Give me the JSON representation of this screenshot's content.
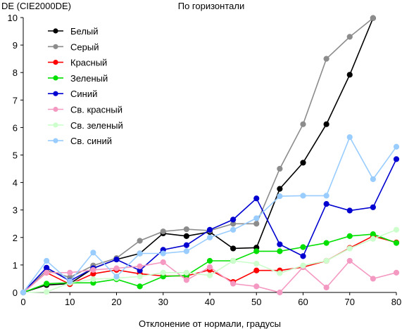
{
  "chart_data": {
    "type": "line",
    "title": "По горизонтали",
    "ylabel": "DE (CIE2000DE)",
    "xlabel": "Отклонение от нормали, градусы",
    "xlim": [
      0,
      80
    ],
    "ylim": [
      0,
      10
    ],
    "xticks": [
      0,
      10,
      20,
      30,
      40,
      50,
      60,
      70,
      80
    ],
    "yticks": [
      0,
      1,
      2,
      3,
      4,
      5,
      6,
      7,
      8,
      9,
      10
    ],
    "grid": false,
    "legend_position": "top-left",
    "series": [
      {
        "name": "Белый",
        "color": "#000000",
        "x": [
          0,
          5,
          10,
          15,
          20,
          25,
          30,
          35,
          40,
          45,
          50,
          55,
          60,
          65,
          70,
          75
        ],
        "y": [
          0.0,
          0.27,
          0.32,
          0.88,
          1.2,
          1.42,
          2.15,
          2.05,
          2.2,
          1.6,
          1.63,
          3.77,
          4.72,
          6.12,
          7.92,
          9.98
        ]
      },
      {
        "name": "Серый",
        "color": "#8c8c8c",
        "x": [
          0,
          5,
          10,
          15,
          20,
          25,
          30,
          35,
          40,
          45,
          50,
          55,
          60,
          65,
          70,
          75
        ],
        "y": [
          0.0,
          0.8,
          0.55,
          0.98,
          1.25,
          1.88,
          2.22,
          2.3,
          2.25,
          2.5,
          2.5,
          4.5,
          6.12,
          8.5,
          9.3,
          9.98
        ]
      },
      {
        "name": "Красный",
        "color": "#ff0000",
        "x": [
          0,
          5,
          10,
          15,
          20,
          25,
          30,
          35,
          40,
          45,
          50,
          55,
          60,
          65,
          70,
          75,
          80
        ],
        "y": [
          0.0,
          0.72,
          0.3,
          0.68,
          0.82,
          0.68,
          0.6,
          0.6,
          0.82,
          0.38,
          0.8,
          0.8,
          0.92,
          1.15,
          1.62,
          2.05,
          1.82
        ]
      },
      {
        "name": "Зеленый",
        "color": "#00e000",
        "x": [
          0,
          5,
          10,
          15,
          20,
          25,
          30,
          35,
          40,
          45,
          50,
          55,
          60,
          65,
          70,
          75,
          80
        ],
        "y": [
          0.0,
          0.32,
          0.35,
          0.35,
          0.48,
          0.22,
          0.58,
          0.62,
          1.15,
          1.15,
          1.5,
          1.5,
          1.65,
          1.8,
          2.05,
          2.12,
          1.8
        ]
      },
      {
        "name": "Синий",
        "color": "#0000d0",
        "x": [
          0,
          5,
          10,
          15,
          20,
          25,
          30,
          35,
          40,
          45,
          50,
          55,
          60,
          65,
          70,
          75,
          80
        ],
        "y": [
          0.0,
          0.9,
          0.42,
          0.88,
          1.2,
          0.8,
          1.55,
          1.72,
          2.28,
          2.65,
          3.42,
          1.75,
          1.32,
          3.22,
          2.98,
          3.1,
          4.85
        ]
      },
      {
        "name": "Св. красный",
        "color": "#f49ac2",
        "x": [
          0,
          5,
          10,
          15,
          20,
          25,
          30,
          35,
          40,
          45,
          50,
          55,
          60,
          65,
          70,
          75,
          80
        ],
        "y": [
          0.0,
          0.72,
          0.72,
          0.82,
          0.88,
          0.95,
          1.1,
          0.45,
          0.92,
          0.32,
          0.22,
          0.0,
          0.92,
          0.18,
          1.15,
          0.5,
          0.72
        ]
      },
      {
        "name": "Св. зеленый",
        "color": "#ccffcc",
        "x": [
          0,
          5,
          10,
          15,
          20,
          25,
          30,
          35,
          40,
          45,
          50,
          55,
          60,
          65,
          70,
          75,
          80
        ],
        "y": [
          0.0,
          0.02,
          0.35,
          0.48,
          0.52,
          0.58,
          0.72,
          0.72,
          0.62,
          1.15,
          1.05,
          0.7,
          0.98,
          1.15,
          1.6,
          1.95,
          2.28
        ]
      },
      {
        "name": "Св. синий",
        "color": "#99ccff",
        "x": [
          0,
          5,
          10,
          15,
          20,
          25,
          30,
          35,
          40,
          45,
          50,
          55,
          60,
          65,
          70,
          75,
          80
        ],
        "y": [
          0.0,
          1.15,
          0.4,
          1.45,
          0.58,
          1.42,
          1.42,
          1.5,
          2.0,
          2.28,
          2.7,
          3.5,
          3.52,
          3.52,
          5.65,
          4.12,
          5.3
        ]
      }
    ]
  }
}
